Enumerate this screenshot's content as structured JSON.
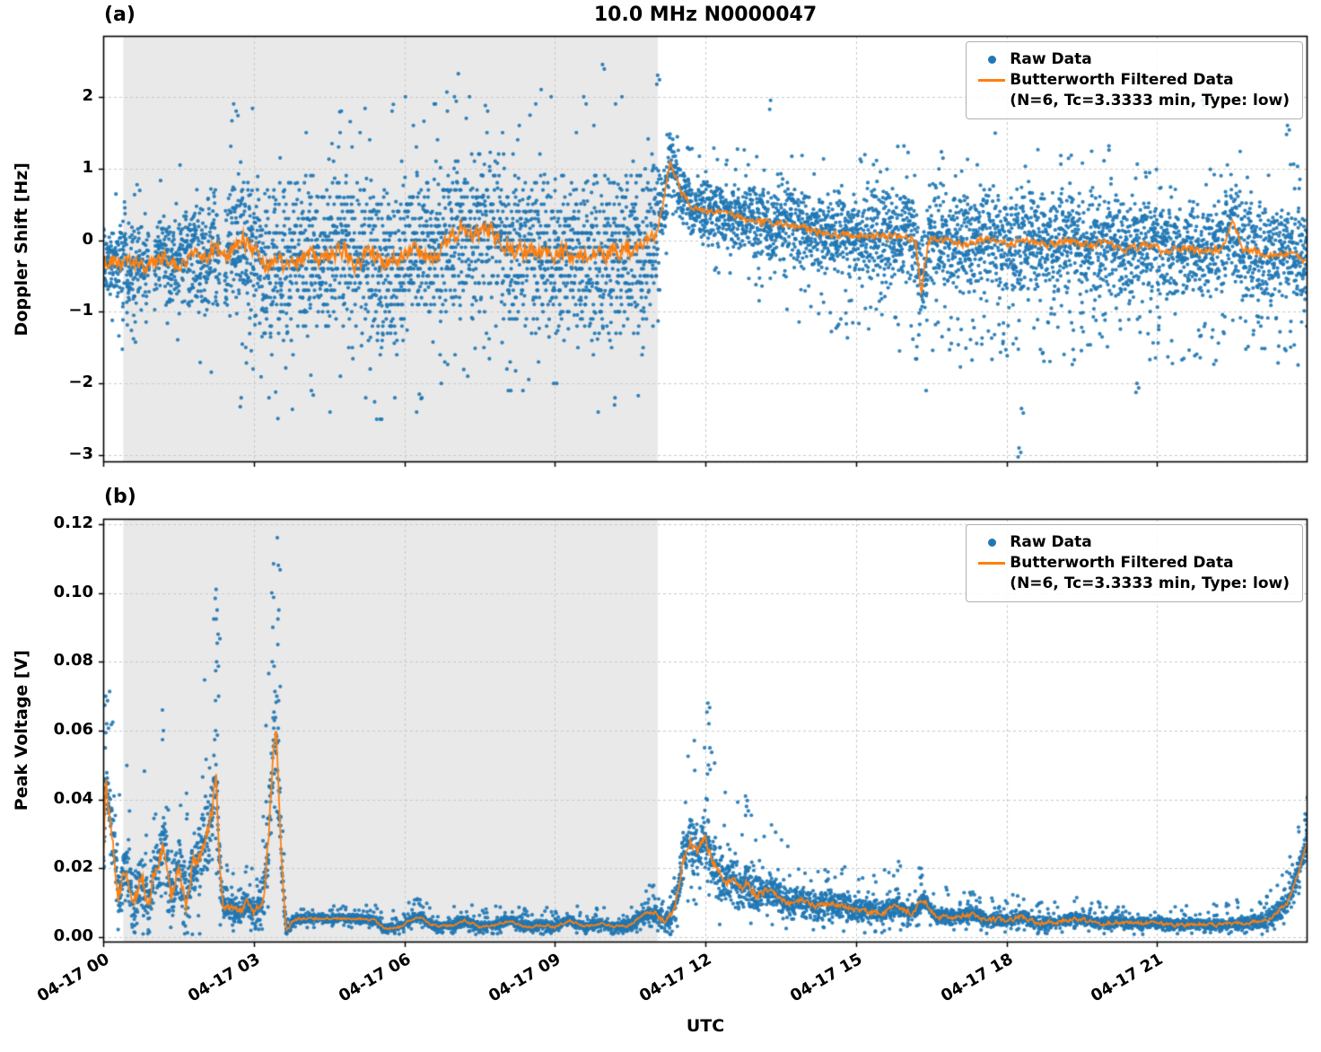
{
  "figure": {
    "title": "10.0 MHz N0000047",
    "xlabel": "UTC"
  },
  "colors": {
    "raw": "#1f77b4",
    "filtered": "#ff7f0e",
    "shade": "#e9e9e9",
    "grid": "#c9c9c9",
    "axis": "#000000"
  },
  "legend": {
    "raw_label": "Raw Data",
    "filtered_label": "Butterworth Filtered Data",
    "filtered_sublabel": "(N=6, Tc=3.3333 min, Type: low)"
  },
  "x_axis": {
    "label": "UTC",
    "lim_hours": [
      0,
      24
    ],
    "ticks_hours": [
      0,
      3,
      6,
      9,
      12,
      15,
      18,
      21
    ],
    "tick_labels": [
      "04-17 00",
      "04-17 03",
      "04-17 06",
      "04-17 09",
      "04-17 12",
      "04-17 15",
      "04-17 18",
      "04-17 21"
    ]
  },
  "chart_data": [
    {
      "id": "doppler",
      "type": "scatter+line",
      "panel_label": "(a)",
      "title": "10.0 MHz N0000047",
      "ylabel": "Doppler Shift [Hz]",
      "ylim": [
        -3.1,
        2.85
      ],
      "yticks": [
        2,
        1,
        0,
        -1,
        -2,
        -3
      ],
      "ytick_labels": [
        "2",
        "1",
        "0",
        "−1",
        "−2",
        "−3"
      ],
      "shade_hours": [
        0.4,
        11.05
      ],
      "series": [
        {
          "name": "Raw Data",
          "kind": "scatter",
          "color": "#1f77b4"
        },
        {
          "name": "Butterworth Filtered Data (N=6, Tc=3.3333 min, Type: low)",
          "kind": "line",
          "color": "#ff7f0e"
        }
      ],
      "gaps": [
        [
          0.92,
          1.02
        ],
        [
          2.32,
          2.42
        ]
      ],
      "filtered": [
        [
          0,
          -0.35
        ],
        [
          0.2,
          -0.25
        ],
        [
          0.4,
          -0.35
        ],
        [
          0.6,
          -0.3
        ],
        [
          0.8,
          -0.4
        ],
        [
          1,
          -0.3
        ],
        [
          1.2,
          -0.25
        ],
        [
          1.4,
          -0.35
        ],
        [
          1.6,
          -0.3
        ],
        [
          1.8,
          -0.2
        ],
        [
          2,
          -0.3
        ],
        [
          2.2,
          -0.1
        ],
        [
          2.4,
          -0.2
        ],
        [
          2.6,
          -0.1
        ],
        [
          2.8,
          0
        ],
        [
          3,
          -0.1
        ],
        [
          3.2,
          -0.35
        ],
        [
          3.4,
          -0.3
        ],
        [
          3.6,
          -0.35
        ],
        [
          3.8,
          -0.25
        ],
        [
          4,
          -0.3
        ],
        [
          4.2,
          -0.2
        ],
        [
          4.4,
          -0.3
        ],
        [
          4.6,
          -0.2
        ],
        [
          4.8,
          -0.15
        ],
        [
          5,
          -0.3
        ],
        [
          5.2,
          -0.25
        ],
        [
          5.4,
          -0.2
        ],
        [
          5.6,
          -0.35
        ],
        [
          5.8,
          -0.25
        ],
        [
          6,
          -0.2
        ],
        [
          6.2,
          -0.1
        ],
        [
          6.4,
          -0.25
        ],
        [
          6.6,
          -0.2
        ],
        [
          6.8,
          -0.05
        ],
        [
          7,
          0.1
        ],
        [
          7.2,
          0.15
        ],
        [
          7.4,
          0.05
        ],
        [
          7.6,
          0.2
        ],
        [
          7.8,
          0.1
        ],
        [
          8,
          -0.05
        ],
        [
          8.2,
          -0.15
        ],
        [
          8.4,
          -0.1
        ],
        [
          8.6,
          -0.2
        ],
        [
          8.8,
          -0.15
        ],
        [
          9,
          -0.25
        ],
        [
          9.2,
          -0.15
        ],
        [
          9.4,
          -0.25
        ],
        [
          9.6,
          -0.2
        ],
        [
          9.8,
          -0.15
        ],
        [
          10,
          -0.25
        ],
        [
          10.2,
          -0.2
        ],
        [
          10.4,
          -0.1
        ],
        [
          10.6,
          -0.2
        ],
        [
          10.8,
          -0.1
        ],
        [
          11,
          0.05
        ],
        [
          11.15,
          0.5
        ],
        [
          11.3,
          1.1
        ],
        [
          11.4,
          0.9
        ],
        [
          11.5,
          0.7
        ],
        [
          11.65,
          0.55
        ],
        [
          11.8,
          0.45
        ],
        [
          12,
          0.42
        ],
        [
          12.3,
          0.38
        ],
        [
          12.6,
          0.32
        ],
        [
          13,
          0.27
        ],
        [
          13.4,
          0.22
        ],
        [
          13.8,
          0.18
        ],
        [
          14.2,
          0.12
        ],
        [
          14.6,
          0.1
        ],
        [
          15,
          0.05
        ],
        [
          15.4,
          0.08
        ],
        [
          15.8,
          0.02
        ],
        [
          16.1,
          0.05
        ],
        [
          16.2,
          -0.05
        ],
        [
          16.3,
          -0.75
        ],
        [
          16.45,
          0.02
        ],
        [
          16.8,
          0.02
        ],
        [
          17.2,
          -0.05
        ],
        [
          17.6,
          0.04
        ],
        [
          18,
          -0.04
        ],
        [
          18.4,
          0
        ],
        [
          18.8,
          -0.08
        ],
        [
          19.2,
          0
        ],
        [
          19.6,
          -0.08
        ],
        [
          20,
          -0.04
        ],
        [
          20.4,
          -0.12
        ],
        [
          20.8,
          -0.08
        ],
        [
          21.2,
          -0.16
        ],
        [
          21.6,
          -0.12
        ],
        [
          22,
          -0.18
        ],
        [
          22.3,
          -0.1
        ],
        [
          22.5,
          0.25
        ],
        [
          22.7,
          -0.12
        ],
        [
          23,
          -0.18
        ],
        [
          23.4,
          -0.22
        ],
        [
          23.7,
          -0.18
        ],
        [
          24,
          -0.3
        ]
      ],
      "filtered_jitter": [
        [
          0,
          0.1
        ],
        [
          3,
          0.13
        ],
        [
          10.8,
          0.13
        ],
        [
          11.2,
          0.04
        ],
        [
          11.6,
          0.05
        ],
        [
          13,
          0.06
        ],
        [
          24,
          0.06
        ]
      ],
      "raw_spread": [
        [
          0,
          0.45
        ],
        [
          0.5,
          0.55
        ],
        [
          1,
          0.5
        ],
        [
          1.5,
          0.6
        ],
        [
          2,
          0.75
        ],
        [
          2.4,
          0.85
        ],
        [
          2.8,
          0.9
        ],
        [
          3.2,
          0.95
        ],
        [
          4,
          1
        ],
        [
          6,
          1
        ],
        [
          8,
          1
        ],
        [
          10,
          1
        ],
        [
          10.9,
          0.95
        ],
        [
          11.2,
          0.5
        ],
        [
          11.5,
          0.35
        ],
        [
          12,
          0.4
        ],
        [
          12.5,
          0.42
        ],
        [
          13,
          0.45
        ],
        [
          14,
          0.5
        ],
        [
          15,
          0.55
        ],
        [
          16,
          0.6
        ],
        [
          17,
          0.65
        ],
        [
          18,
          0.68
        ],
        [
          19,
          0.65
        ],
        [
          20,
          0.62
        ],
        [
          21,
          0.6
        ],
        [
          22,
          0.58
        ],
        [
          22.5,
          0.65
        ],
        [
          23,
          0.6
        ],
        [
          24,
          0.58
        ]
      ],
      "raw_outliers": [
        [
          9.95,
          2.45
        ],
        [
          11.05,
          2.3
        ],
        [
          7.0,
          2.0
        ],
        [
          2.75,
          -2.2
        ],
        [
          4.15,
          -2.1
        ],
        [
          6.3,
          -2.15
        ],
        [
          18.25,
          -2.9
        ],
        [
          18.3,
          -2.35
        ],
        [
          16.4,
          -2.1
        ],
        [
          20.6,
          -2.0
        ],
        [
          13.3,
          1.95
        ],
        [
          21.9,
          1.95
        ],
        [
          23.6,
          1.6
        ],
        [
          2.6,
          1.9
        ],
        [
          2.65,
          1.8
        ]
      ]
    },
    {
      "id": "peak-voltage",
      "type": "scatter+line",
      "panel_label": "(b)",
      "ylabel": "Peak Voltage [V]",
      "ylim": [
        -0.0015,
        0.1215
      ],
      "yticks": [
        0.12,
        0.1,
        0.08,
        0.06,
        0.04,
        0.02,
        0.0
      ],
      "ytick_labels": [
        "0.12",
        "0.10",
        "0.08",
        "0.06",
        "0.04",
        "0.02",
        "0.00"
      ],
      "shade_hours": [
        0.4,
        11.05
      ],
      "series": [
        {
          "name": "Raw Data",
          "kind": "scatter",
          "color": "#1f77b4"
        },
        {
          "name": "Butterworth Filtered Data (N=6, Tc=3.3333 min, Type: low)",
          "kind": "line",
          "color": "#ff7f0e"
        }
      ],
      "gaps": [],
      "filtered": [
        [
          0,
          0.02
        ],
        [
          0.05,
          0.045
        ],
        [
          0.15,
          0.035
        ],
        [
          0.3,
          0.012
        ],
        [
          0.45,
          0.02
        ],
        [
          0.6,
          0.008
        ],
        [
          0.75,
          0.018
        ],
        [
          0.9,
          0.01
        ],
        [
          1.05,
          0.02
        ],
        [
          1.2,
          0.028
        ],
        [
          1.35,
          0.012
        ],
        [
          1.5,
          0.022
        ],
        [
          1.65,
          0.01
        ],
        [
          1.8,
          0.02
        ],
        [
          1.95,
          0.025
        ],
        [
          2.05,
          0.03
        ],
        [
          2.15,
          0.035
        ],
        [
          2.25,
          0.046
        ],
        [
          2.32,
          0.02
        ],
        [
          2.4,
          0.008
        ],
        [
          2.55,
          0.009
        ],
        [
          2.7,
          0.007
        ],
        [
          2.85,
          0.01
        ],
        [
          3,
          0.007
        ],
        [
          3.15,
          0.009
        ],
        [
          3.3,
          0.028
        ],
        [
          3.38,
          0.05
        ],
        [
          3.45,
          0.06
        ],
        [
          3.5,
          0.04
        ],
        [
          3.58,
          0.015
        ],
        [
          3.65,
          0.002
        ],
        [
          3.8,
          0.005
        ],
        [
          4,
          0.0055
        ],
        [
          4.5,
          0.0055
        ],
        [
          5,
          0.0055
        ],
        [
          5.4,
          0.005
        ],
        [
          5.6,
          0.0025
        ],
        [
          5.9,
          0.003
        ],
        [
          6.1,
          0.005
        ],
        [
          6.3,
          0.006
        ],
        [
          6.5,
          0.004
        ],
        [
          6.7,
          0.003
        ],
        [
          7,
          0.0035
        ],
        [
          7.2,
          0.005
        ],
        [
          7.5,
          0.003
        ],
        [
          7.8,
          0.0035
        ],
        [
          8.1,
          0.005
        ],
        [
          8.4,
          0.003
        ],
        [
          8.7,
          0.0035
        ],
        [
          9,
          0.003
        ],
        [
          9.3,
          0.005
        ],
        [
          9.6,
          0.003
        ],
        [
          9.9,
          0.004
        ],
        [
          10.2,
          0.003
        ],
        [
          10.5,
          0.0035
        ],
        [
          10.8,
          0.007
        ],
        [
          11,
          0.007
        ],
        [
          11.2,
          0.004
        ],
        [
          11.4,
          0.008
        ],
        [
          11.55,
          0.022
        ],
        [
          11.7,
          0.028
        ],
        [
          11.85,
          0.024
        ],
        [
          12,
          0.03
        ],
        [
          12.1,
          0.024
        ],
        [
          12.25,
          0.019
        ],
        [
          12.4,
          0.016
        ],
        [
          12.55,
          0.018
        ],
        [
          12.7,
          0.014
        ],
        [
          12.85,
          0.016
        ],
        [
          13,
          0.012
        ],
        [
          13.3,
          0.014
        ],
        [
          13.6,
          0.01
        ],
        [
          13.9,
          0.011
        ],
        [
          14.2,
          0.009
        ],
        [
          14.5,
          0.01
        ],
        [
          15,
          0.008
        ],
        [
          15.5,
          0.007
        ],
        [
          15.8,
          0.009
        ],
        [
          16.1,
          0.007
        ],
        [
          16.35,
          0.011
        ],
        [
          16.6,
          0.006
        ],
        [
          17,
          0.006
        ],
        [
          17.3,
          0.007
        ],
        [
          17.6,
          0.005
        ],
        [
          18,
          0.005
        ],
        [
          18.3,
          0.006
        ],
        [
          18.6,
          0.004
        ],
        [
          19,
          0.0045
        ],
        [
          19.4,
          0.0055
        ],
        [
          19.8,
          0.004
        ],
        [
          20.2,
          0.0045
        ],
        [
          20.6,
          0.004
        ],
        [
          21,
          0.0042
        ],
        [
          21.4,
          0.0035
        ],
        [
          21.8,
          0.004
        ],
        [
          22.2,
          0.0035
        ],
        [
          22.6,
          0.004
        ],
        [
          23,
          0.0045
        ],
        [
          23.3,
          0.006
        ],
        [
          23.6,
          0.01
        ],
        [
          23.8,
          0.018
        ],
        [
          24,
          0.028
        ]
      ],
      "filtered_jitter": [
        [
          0,
          0.003
        ],
        [
          2.2,
          0.003
        ],
        [
          2.4,
          0.0012
        ],
        [
          3,
          0.0012
        ],
        [
          3.3,
          0.004
        ],
        [
          3.6,
          0.0008
        ],
        [
          4,
          0.0004
        ],
        [
          10.8,
          0.0004
        ],
        [
          11.4,
          0.0015
        ],
        [
          12.5,
          0.0018
        ],
        [
          13.5,
          0.001
        ],
        [
          24,
          0.0005
        ]
      ],
      "raw_spread": [
        [
          0,
          0.01
        ],
        [
          0.3,
          0.007
        ],
        [
          0.6,
          0.008
        ],
        [
          1,
          0.009
        ],
        [
          1.5,
          0.009
        ],
        [
          2,
          0.011
        ],
        [
          2.25,
          0.013
        ],
        [
          2.4,
          0.003
        ],
        [
          3,
          0.003
        ],
        [
          3.3,
          0.012
        ],
        [
          3.5,
          0.016
        ],
        [
          3.65,
          0.0015
        ],
        [
          4,
          0.0012
        ],
        [
          5,
          0.0012
        ],
        [
          6,
          0.0013
        ],
        [
          7,
          0.0013
        ],
        [
          8,
          0.0013
        ],
        [
          9,
          0.0013
        ],
        [
          10,
          0.0013
        ],
        [
          10.8,
          0.0018
        ],
        [
          11.3,
          0.003
        ],
        [
          11.6,
          0.007
        ],
        [
          12,
          0.008
        ],
        [
          12.5,
          0.006
        ],
        [
          13,
          0.005
        ],
        [
          13.5,
          0.0045
        ],
        [
          14,
          0.004
        ],
        [
          15,
          0.003
        ],
        [
          16,
          0.0028
        ],
        [
          17,
          0.002
        ],
        [
          18,
          0.0018
        ],
        [
          19,
          0.0015
        ],
        [
          20,
          0.0015
        ],
        [
          21,
          0.0014
        ],
        [
          22,
          0.0014
        ],
        [
          23,
          0.0018
        ],
        [
          23.7,
          0.003
        ],
        [
          24,
          0.004
        ]
      ],
      "raw_outliers": [
        [
          0.05,
          0.07
        ],
        [
          0.07,
          0.062
        ],
        [
          0.04,
          0.055
        ],
        [
          1.18,
          0.066
        ],
        [
          1.2,
          0.06
        ],
        [
          2.25,
          0.101
        ],
        [
          2.27,
          0.095
        ],
        [
          2.29,
          0.088
        ],
        [
          2.26,
          0.08
        ],
        [
          2.3,
          0.07
        ],
        [
          2.24,
          0.06
        ],
        [
          3.36,
          0.1
        ],
        [
          3.38,
          0.09
        ],
        [
          3.37,
          0.08
        ],
        [
          3.47,
          0.116
        ],
        [
          3.49,
          0.108
        ],
        [
          3.5,
          0.095
        ],
        [
          3.48,
          0.085
        ],
        [
          3.46,
          0.07
        ],
        [
          12.05,
          0.068
        ],
        [
          12.07,
          0.062
        ],
        [
          12.09,
          0.055
        ],
        [
          12.06,
          0.05
        ],
        [
          12.8,
          0.041
        ],
        [
          12.82,
          0.038
        ],
        [
          15.85,
          0.022
        ],
        [
          16.3,
          0.02
        ],
        [
          16.32,
          0.018
        ],
        [
          23.95,
          0.034
        ]
      ]
    }
  ]
}
